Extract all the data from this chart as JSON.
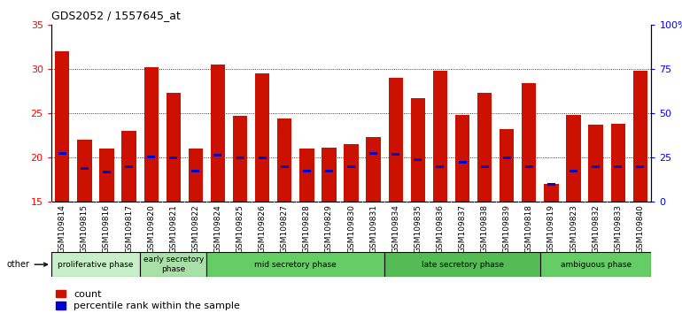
{
  "title": "GDS2052 / 1557645_at",
  "samples": [
    "GSM109814",
    "GSM109815",
    "GSM109816",
    "GSM109817",
    "GSM109820",
    "GSM109821",
    "GSM109822",
    "GSM109824",
    "GSM109825",
    "GSM109826",
    "GSM109827",
    "GSM109828",
    "GSM109829",
    "GSM109830",
    "GSM109831",
    "GSM109834",
    "GSM109835",
    "GSM109836",
    "GSM109837",
    "GSM109838",
    "GSM109839",
    "GSM109818",
    "GSM109819",
    "GSM109823",
    "GSM109832",
    "GSM109833",
    "GSM109840"
  ],
  "red_values": [
    32.0,
    22.0,
    21.0,
    23.0,
    30.2,
    27.3,
    21.0,
    30.5,
    24.7,
    29.5,
    24.4,
    21.0,
    21.1,
    21.5,
    22.3,
    29.0,
    26.7,
    29.8,
    24.8,
    27.3,
    23.2,
    28.4,
    17.0,
    24.8,
    23.7,
    23.8,
    29.8
  ],
  "blue_values": [
    20.5,
    18.8,
    18.4,
    19.0,
    20.1,
    20.0,
    18.5,
    20.3,
    20.0,
    20.0,
    19.0,
    18.5,
    18.5,
    19.0,
    20.5,
    20.4,
    19.8,
    19.0,
    19.5,
    19.0,
    20.0,
    19.0,
    17.0,
    18.5,
    19.0,
    19.0,
    19.0
  ],
  "ylim": [
    15,
    35
  ],
  "yticks_left": [
    15,
    20,
    25,
    30,
    35
  ],
  "yticks_right": [
    0,
    25,
    50,
    75,
    100
  ],
  "ytick_labels_right": [
    "0",
    "25",
    "50",
    "75",
    "100%"
  ],
  "phases": [
    {
      "label": "proliferative phase",
      "start": 0,
      "end": 3,
      "color": "#c8f0c8"
    },
    {
      "label": "early secretory\nphase",
      "start": 4,
      "end": 6,
      "color": "#a8e0a8"
    },
    {
      "label": "mid secretory phase",
      "start": 7,
      "end": 14,
      "color": "#66cc66"
    },
    {
      "label": "late secretory phase",
      "start": 15,
      "end": 21,
      "color": "#55bb55"
    },
    {
      "label": "ambiguous phase",
      "start": 22,
      "end": 26,
      "color": "#66cc66"
    }
  ],
  "bar_color": "#cc1100",
  "blue_color": "#0000cc",
  "bg_color": "#cccccc",
  "other_label": "other",
  "legend_count": "count",
  "legend_percentile": "percentile rank within the sample",
  "title_fontsize": 9,
  "tick_fontsize": 6.5,
  "bar_width": 0.65
}
